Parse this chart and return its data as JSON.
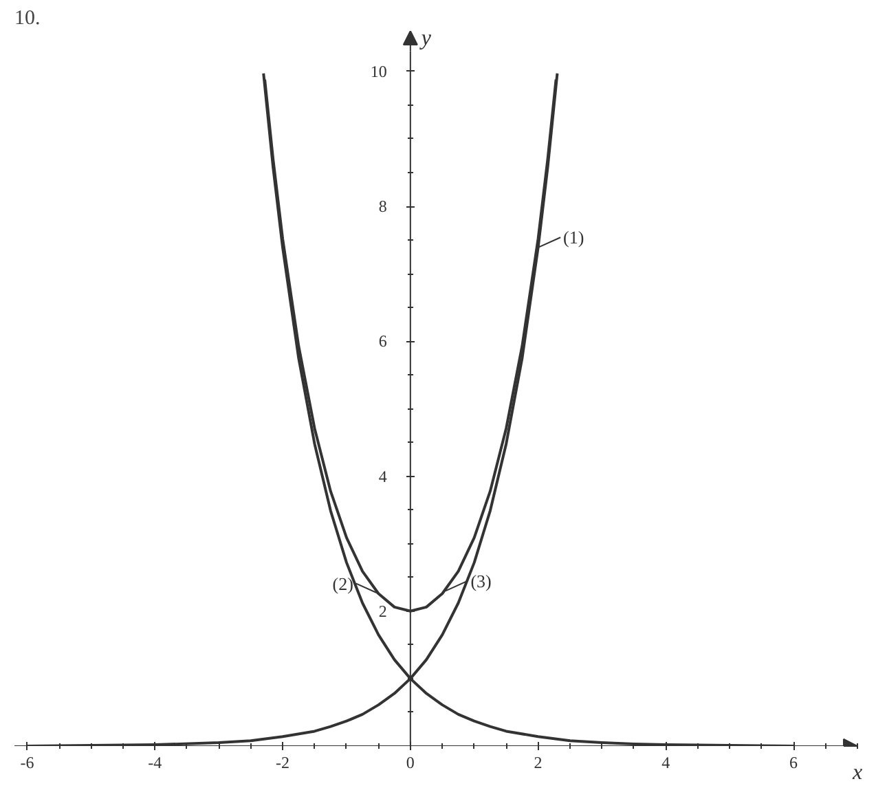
{
  "chart_data": {
    "type": "line",
    "title": "10.",
    "xlabel": "x",
    "ylabel": "y",
    "xlim": [
      -6.2,
      7.0
    ],
    "ylim": [
      0,
      10.6
    ],
    "xticks": [
      -6,
      -4,
      -2,
      0,
      2,
      4,
      6
    ],
    "yticks": [
      2,
      4,
      6,
      8,
      10
    ],
    "grid": false,
    "marker": "none",
    "line_style": "solid",
    "series": [
      {
        "color": "#333333",
        "x": [
          -6,
          -5,
          -4,
          -3,
          -2.5,
          -2,
          -1.5,
          -1.25,
          -1,
          -0.75,
          -0.5,
          -0.25,
          0,
          0.25,
          0.5,
          0.75,
          1,
          1.25,
          1.5,
          1.75,
          2,
          2.15,
          2.3
        ],
        "values": [
          0.0,
          0.01,
          0.02,
          0.05,
          0.08,
          0.14,
          0.22,
          0.29,
          0.37,
          0.47,
          0.61,
          0.78,
          1,
          1.28,
          1.65,
          2.12,
          2.72,
          3.49,
          4.48,
          5.75,
          7.39,
          8.58,
          9.97
        ]
      },
      {
        "color": "#333333",
        "x": [
          -2.3,
          -2.15,
          -2,
          -1.75,
          -1.5,
          -1.25,
          -1,
          -0.75,
          -0.5,
          -0.25,
          0,
          0.25,
          0.5,
          0.75,
          1,
          1.25,
          1.5,
          2,
          2.5,
          3,
          3.5,
          4,
          5,
          6
        ],
        "values": [
          9.97,
          8.58,
          7.39,
          5.75,
          4.48,
          3.49,
          2.72,
          2.12,
          1.65,
          1.28,
          1,
          0.78,
          0.61,
          0.47,
          0.37,
          0.29,
          0.22,
          0.14,
          0.08,
          0.05,
          0.03,
          0.02,
          0.01,
          0.0
        ]
      },
      {
        "color": "#333333",
        "x": [
          -2.28,
          -2.15,
          -2,
          -1.75,
          -1.5,
          -1.25,
          -1,
          -0.75,
          -0.5,
          -0.25,
          0,
          0.25,
          0.5,
          0.75,
          1,
          1.25,
          1.5,
          1.75,
          2,
          2.15,
          2.28
        ],
        "values": [
          9.88,
          8.7,
          7.52,
          5.93,
          4.71,
          3.78,
          3.09,
          2.59,
          2.26,
          2.06,
          2,
          2.06,
          2.26,
          2.59,
          3.09,
          3.78,
          4.71,
          5.93,
          7.52,
          8.7,
          9.88
        ]
      }
    ],
    "annotations": [
      {
        "text": "(1)",
        "x": 2.0,
        "y": 7.39
      },
      {
        "text": "(2)",
        "x": -0.5,
        "y": 2.26
      },
      {
        "text": "(3)",
        "x": 0.55,
        "y": 2.3
      }
    ]
  }
}
